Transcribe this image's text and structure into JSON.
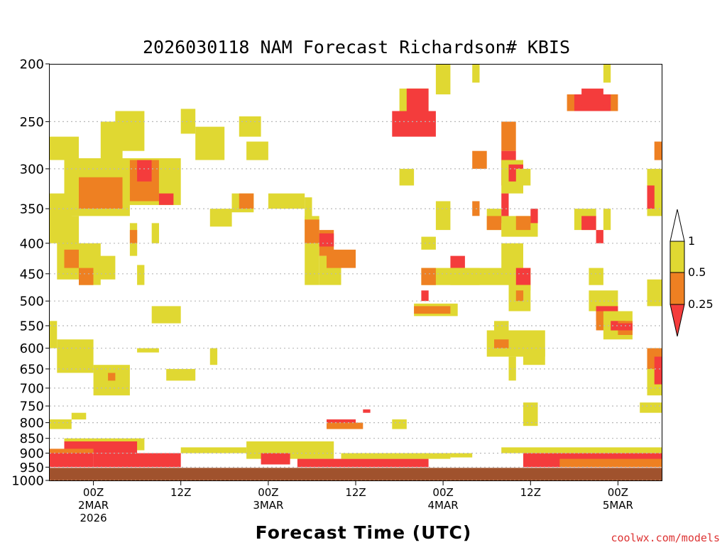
{
  "chart_data": {
    "type": "heatmap",
    "title": "2026030118 NAM Forecast Richardson# KBIS",
    "xlabel": "Forecast Time (UTC)",
    "credit": "coolwx.com/models",
    "y_ticks": [
      "200",
      "250",
      "300",
      "350",
      "400",
      "450",
      "500",
      "550",
      "600",
      "650",
      "700",
      "750",
      "800",
      "850",
      "900",
      "950",
      "1000"
    ],
    "ylim": [
      1000,
      200
    ],
    "x_ticks": [
      {
        "lines": [
          "00Z",
          "2MAR",
          "2026"
        ],
        "hour": 6
      },
      {
        "lines": [
          "12Z"
        ],
        "hour": 18
      },
      {
        "lines": [
          "00Z",
          "3MAR"
        ],
        "hour": 30
      },
      {
        "lines": [
          "12Z"
        ],
        "hour": 42
      },
      {
        "lines": [
          "00Z",
          "4MAR"
        ],
        "hour": 54
      },
      {
        "lines": [
          "12Z"
        ],
        "hour": 66
      },
      {
        "lines": [
          "00Z",
          "5MAR"
        ],
        "hour": 78
      }
    ],
    "xlim_hours": [
      0,
      84
    ],
    "legend": {
      "levels": [
        "1",
        "0.5",
        "0.25"
      ],
      "bins": [
        {
          "label": "0.5 - 1",
          "color": "#e0d832"
        },
        {
          "label": "0.25 - 0.5",
          "color": "#ee8022"
        },
        {
          "label": "< 0.25",
          "color": "#f43c3c"
        }
      ]
    },
    "colors": {
      "yellow": "#e0d832",
      "orange": "#ee8022",
      "red": "#f43c3c",
      "ground": "#a0522d"
    },
    "regions": [
      {
        "h": [
          0,
          4
        ],
        "p": [
          265,
          290
        ],
        "c": "yellow"
      },
      {
        "h": [
          7,
          10
        ],
        "p": [
          250,
          290
        ],
        "c": "yellow"
      },
      {
        "h": [
          9,
          13
        ],
        "p": [
          240,
          280
        ],
        "c": "yellow"
      },
      {
        "h": [
          18,
          20
        ],
        "p": [
          238,
          262
        ],
        "c": "yellow"
      },
      {
        "h": [
          20,
          24
        ],
        "p": [
          255,
          290
        ],
        "c": "yellow"
      },
      {
        "h": [
          26,
          29
        ],
        "p": [
          245,
          265
        ],
        "c": "yellow"
      },
      {
        "h": [
          27,
          30
        ],
        "p": [
          270,
          290
        ],
        "c": "yellow"
      },
      {
        "h": [
          2,
          11
        ],
        "p": [
          288,
          360
        ],
        "c": "yellow"
      },
      {
        "h": [
          4,
          10
        ],
        "p": [
          310,
          350
        ],
        "c": "orange"
      },
      {
        "h": [
          10,
          18
        ],
        "p": [
          288,
          345
        ],
        "c": "yellow"
      },
      {
        "h": [
          11,
          15
        ],
        "p": [
          290,
          340
        ],
        "c": "orange"
      },
      {
        "h": [
          12,
          14
        ],
        "p": [
          290,
          315
        ],
        "c": "red"
      },
      {
        "h": [
          15,
          17
        ],
        "p": [
          330,
          345
        ],
        "c": "red"
      },
      {
        "h": [
          0,
          3
        ],
        "p": [
          330,
          400
        ],
        "c": "yellow"
      },
      {
        "h": [
          1,
          4
        ],
        "p": [
          360,
          460
        ],
        "c": "yellow"
      },
      {
        "h": [
          2,
          4
        ],
        "p": [
          410,
          440
        ],
        "c": "orange"
      },
      {
        "h": [
          4,
          7
        ],
        "p": [
          400,
          470
        ],
        "c": "yellow"
      },
      {
        "h": [
          4,
          6
        ],
        "p": [
          440,
          470
        ],
        "c": "orange"
      },
      {
        "h": [
          6,
          9
        ],
        "p": [
          420,
          460
        ],
        "c": "yellow"
      },
      {
        "h": [
          11,
          12
        ],
        "p": [
          370,
          420
        ],
        "c": "yellow"
      },
      {
        "h": [
          11,
          12
        ],
        "p": [
          380,
          400
        ],
        "c": "orange"
      },
      {
        "h": [
          14,
          15
        ],
        "p": [
          370,
          400
        ],
        "c": "yellow"
      },
      {
        "h": [
          12,
          13
        ],
        "p": [
          435,
          470
        ],
        "c": "yellow"
      },
      {
        "h": [
          22,
          25
        ],
        "p": [
          350,
          375
        ],
        "c": "yellow"
      },
      {
        "h": [
          25,
          28
        ],
        "p": [
          330,
          355
        ],
        "c": "yellow"
      },
      {
        "h": [
          26,
          28
        ],
        "p": [
          330,
          350
        ],
        "c": "orange"
      },
      {
        "h": [
          30,
          35
        ],
        "p": [
          330,
          350
        ],
        "c": "yellow"
      },
      {
        "h": [
          35,
          36
        ],
        "p": [
          335,
          370
        ],
        "c": "yellow"
      },
      {
        "h": [
          35,
          37
        ],
        "p": [
          360,
          470
        ],
        "c": "yellow"
      },
      {
        "h": [
          35,
          37
        ],
        "p": [
          365,
          400
        ],
        "c": "orange"
      },
      {
        "h": [
          37,
          39
        ],
        "p": [
          380,
          420
        ],
        "c": "orange"
      },
      {
        "h": [
          37,
          39
        ],
        "p": [
          385,
          405
        ],
        "c": "red"
      },
      {
        "h": [
          37,
          40
        ],
        "p": [
          420,
          470
        ],
        "c": "yellow"
      },
      {
        "h": [
          38,
          42
        ],
        "p": [
          410,
          440
        ],
        "c": "orange"
      },
      {
        "h": [
          14,
          18
        ],
        "p": [
          510,
          545
        ],
        "c": "yellow"
      },
      {
        "h": [
          0,
          1
        ],
        "p": [
          540,
          600
        ],
        "c": "yellow"
      },
      {
        "h": [
          1,
          6
        ],
        "p": [
          580,
          660
        ],
        "c": "yellow"
      },
      {
        "h": [
          6,
          11
        ],
        "p": [
          640,
          720
        ],
        "c": "yellow"
      },
      {
        "h": [
          8,
          9
        ],
        "p": [
          660,
          680
        ],
        "c": "orange"
      },
      {
        "h": [
          16,
          20
        ],
        "p": [
          650,
          680
        ],
        "c": "yellow"
      },
      {
        "h": [
          22,
          23
        ],
        "p": [
          600,
          640
        ],
        "c": "yellow"
      },
      {
        "h": [
          12,
          15
        ],
        "p": [
          600,
          610
        ],
        "c": "yellow"
      },
      {
        "h": [
          48,
          52
        ],
        "p": [
          220,
          260
        ],
        "c": "yellow"
      },
      {
        "h": [
          49,
          52
        ],
        "p": [
          220,
          240
        ],
        "c": "red"
      },
      {
        "h": [
          47,
          53
        ],
        "p": [
          240,
          265
        ],
        "c": "red"
      },
      {
        "h": [
          53,
          55
        ],
        "p": [
          200,
          225
        ],
        "c": "yellow"
      },
      {
        "h": [
          58,
          59
        ],
        "p": [
          200,
          215
        ],
        "c": "yellow"
      },
      {
        "h": [
          58,
          60
        ],
        "p": [
          280,
          300
        ],
        "c": "orange"
      },
      {
        "h": [
          48,
          50
        ],
        "p": [
          300,
          320
        ],
        "c": "yellow"
      },
      {
        "h": [
          53,
          55
        ],
        "p": [
          340,
          380
        ],
        "c": "yellow"
      },
      {
        "h": [
          51,
          53
        ],
        "p": [
          390,
          410
        ],
        "c": "yellow"
      },
      {
        "h": [
          55,
          57
        ],
        "p": [
          420,
          440
        ],
        "c": "red"
      },
      {
        "h": [
          51,
          59
        ],
        "p": [
          440,
          470
        ],
        "c": "yellow"
      },
      {
        "h": [
          51,
          53
        ],
        "p": [
          440,
          470
        ],
        "c": "orange"
      },
      {
        "h": [
          51,
          52
        ],
        "p": [
          480,
          500
        ],
        "c": "red"
      },
      {
        "h": [
          50,
          56
        ],
        "p": [
          505,
          530
        ],
        "c": "yellow"
      },
      {
        "h": [
          50,
          55
        ],
        "p": [
          510,
          525
        ],
        "c": "orange"
      },
      {
        "h": [
          55,
          63
        ],
        "p": [
          440,
          470
        ],
        "c": "yellow"
      },
      {
        "h": [
          58,
          59
        ],
        "p": [
          340,
          360
        ],
        "c": "orange"
      },
      {
        "h": [
          60,
          62
        ],
        "p": [
          350,
          380
        ],
        "c": "yellow"
      },
      {
        "h": [
          62,
          65
        ],
        "p": [
          400,
          450
        ],
        "c": "yellow"
      },
      {
        "h": [
          63,
          66
        ],
        "p": [
          440,
          480
        ],
        "c": "yellow"
      },
      {
        "h": [
          64,
          66
        ],
        "p": [
          440,
          470
        ],
        "c": "red"
      },
      {
        "h": [
          63,
          66
        ],
        "p": [
          470,
          520
        ],
        "c": "yellow"
      },
      {
        "h": [
          64,
          65
        ],
        "p": [
          480,
          500
        ],
        "c": "orange"
      },
      {
        "h": [
          62,
          64
        ],
        "p": [
          250,
          280
        ],
        "c": "orange"
      },
      {
        "h": [
          62,
          64
        ],
        "p": [
          280,
          320
        ],
        "c": "red"
      },
      {
        "h": [
          62,
          65
        ],
        "p": [
          290,
          330
        ],
        "c": "yellow"
      },
      {
        "h": [
          63,
          65
        ],
        "p": [
          295,
          315
        ],
        "c": "red"
      },
      {
        "h": [
          60,
          62
        ],
        "p": [
          360,
          380
        ],
        "c": "orange"
      },
      {
        "h": [
          62,
          63
        ],
        "p": [
          330,
          370
        ],
        "c": "red"
      },
      {
        "h": [
          62,
          67
        ],
        "p": [
          360,
          390
        ],
        "c": "yellow"
      },
      {
        "h": [
          64,
          66
        ],
        "p": [
          360,
          380
        ],
        "c": "orange"
      },
      {
        "h": [
          66,
          67
        ],
        "p": [
          350,
          370
        ],
        "c": "red"
      },
      {
        "h": [
          64,
          66
        ],
        "p": [
          300,
          320
        ],
        "c": "yellow"
      },
      {
        "h": [
          61,
          63
        ],
        "p": [
          540,
          560
        ],
        "c": "yellow"
      },
      {
        "h": [
          60,
          68
        ],
        "p": [
          560,
          620
        ],
        "c": "yellow"
      },
      {
        "h": [
          61,
          63
        ],
        "p": [
          580,
          600
        ],
        "c": "orange"
      },
      {
        "h": [
          63,
          64
        ],
        "p": [
          620,
          680
        ],
        "c": "yellow"
      },
      {
        "h": [
          65,
          68
        ],
        "p": [
          600,
          640
        ],
        "c": "yellow"
      },
      {
        "h": [
          65,
          67
        ],
        "p": [
          740,
          810
        ],
        "c": "yellow"
      },
      {
        "h": [
          71,
          78
        ],
        "p": [
          225,
          240
        ],
        "c": "orange"
      },
      {
        "h": [
          72,
          77
        ],
        "p": [
          225,
          240
        ],
        "c": "red"
      },
      {
        "h": [
          73,
          76
        ],
        "p": [
          220,
          235
        ],
        "c": "red"
      },
      {
        "h": [
          76,
          77
        ],
        "p": [
          200,
          215
        ],
        "c": "yellow"
      },
      {
        "h": [
          72,
          75
        ],
        "p": [
          350,
          380
        ],
        "c": "yellow"
      },
      {
        "h": [
          73,
          75
        ],
        "p": [
          360,
          380
        ],
        "c": "red"
      },
      {
        "h": [
          75,
          76
        ],
        "p": [
          380,
          400
        ],
        "c": "red"
      },
      {
        "h": [
          76,
          77
        ],
        "p": [
          350,
          380
        ],
        "c": "yellow"
      },
      {
        "h": [
          74,
          76
        ],
        "p": [
          440,
          470
        ],
        "c": "yellow"
      },
      {
        "h": [
          74,
          78
        ],
        "p": [
          480,
          520
        ],
        "c": "yellow"
      },
      {
        "h": [
          75,
          78
        ],
        "p": [
          510,
          540
        ],
        "c": "red"
      },
      {
        "h": [
          75,
          78
        ],
        "p": [
          520,
          560
        ],
        "c": "orange"
      },
      {
        "h": [
          76,
          80
        ],
        "p": [
          520,
          580
        ],
        "c": "yellow"
      },
      {
        "h": [
          77,
          79
        ],
        "p": [
          540,
          560
        ],
        "c": "red"
      },
      {
        "h": [
          78,
          80
        ],
        "p": [
          540,
          570
        ],
        "c": "orange"
      },
      {
        "h": [
          78,
          80
        ],
        "p": [
          545,
          560
        ],
        "c": "red"
      },
      {
        "h": [
          82,
          84
        ],
        "p": [
          460,
          510
        ],
        "c": "yellow"
      },
      {
        "h": [
          82,
          84
        ],
        "p": [
          600,
          720
        ],
        "c": "yellow"
      },
      {
        "h": [
          82,
          84
        ],
        "p": [
          600,
          650
        ],
        "c": "orange"
      },
      {
        "h": [
          83,
          84
        ],
        "p": [
          620,
          690
        ],
        "c": "red"
      },
      {
        "h": [
          82,
          84
        ],
        "p": [
          300,
          360
        ],
        "c": "yellow"
      },
      {
        "h": [
          82,
          83
        ],
        "p": [
          320,
          350
        ],
        "c": "red"
      },
      {
        "h": [
          83,
          84
        ],
        "p": [
          270,
          290
        ],
        "c": "orange"
      },
      {
        "h": [
          81,
          84
        ],
        "p": [
          740,
          770
        ],
        "c": "yellow"
      },
      {
        "h": [
          0,
          3
        ],
        "p": [
          790,
          820
        ],
        "c": "yellow"
      },
      {
        "h": [
          3,
          5
        ],
        "p": [
          770,
          790
        ],
        "c": "yellow"
      },
      {
        "h": [
          2,
          13
        ],
        "p": [
          850,
          890
        ],
        "c": "yellow"
      },
      {
        "h": [
          2,
          12
        ],
        "p": [
          860,
          900
        ],
        "c": "red"
      },
      {
        "h": [
          0,
          6
        ],
        "p": [
          890,
          950
        ],
        "c": "red"
      },
      {
        "h": [
          0,
          6
        ],
        "p": [
          885,
          900
        ],
        "c": "orange"
      },
      {
        "h": [
          6,
          18
        ],
        "p": [
          900,
          950
        ],
        "c": "red"
      },
      {
        "h": [
          18,
          27
        ],
        "p": [
          880,
          900
        ],
        "c": "yellow"
      },
      {
        "h": [
          27,
          39
        ],
        "p": [
          860,
          920
        ],
        "c": "yellow"
      },
      {
        "h": [
          29,
          33
        ],
        "p": [
          900,
          940
        ],
        "c": "red"
      },
      {
        "h": [
          38,
          42
        ],
        "p": [
          790,
          810
        ],
        "c": "red"
      },
      {
        "h": [
          38,
          43
        ],
        "p": [
          800,
          820
        ],
        "c": "orange"
      },
      {
        "h": [
          43,
          44
        ],
        "p": [
          760,
          770
        ],
        "c": "red"
      },
      {
        "h": [
          47,
          49
        ],
        "p": [
          790,
          820
        ],
        "c": "yellow"
      },
      {
        "h": [
          34,
          52
        ],
        "p": [
          920,
          950
        ],
        "c": "red"
      },
      {
        "h": [
          40,
          55
        ],
        "p": [
          900,
          920
        ],
        "c": "yellow"
      },
      {
        "h": [
          55,
          58
        ],
        "p": [
          900,
          915
        ],
        "c": "yellow"
      },
      {
        "h": [
          62,
          84
        ],
        "p": [
          880,
          900
        ],
        "c": "yellow"
      },
      {
        "h": [
          65,
          84
        ],
        "p": [
          900,
          950
        ],
        "c": "red"
      },
      {
        "h": [
          70,
          84
        ],
        "p": [
          920,
          950
        ],
        "c": "orange"
      }
    ]
  }
}
